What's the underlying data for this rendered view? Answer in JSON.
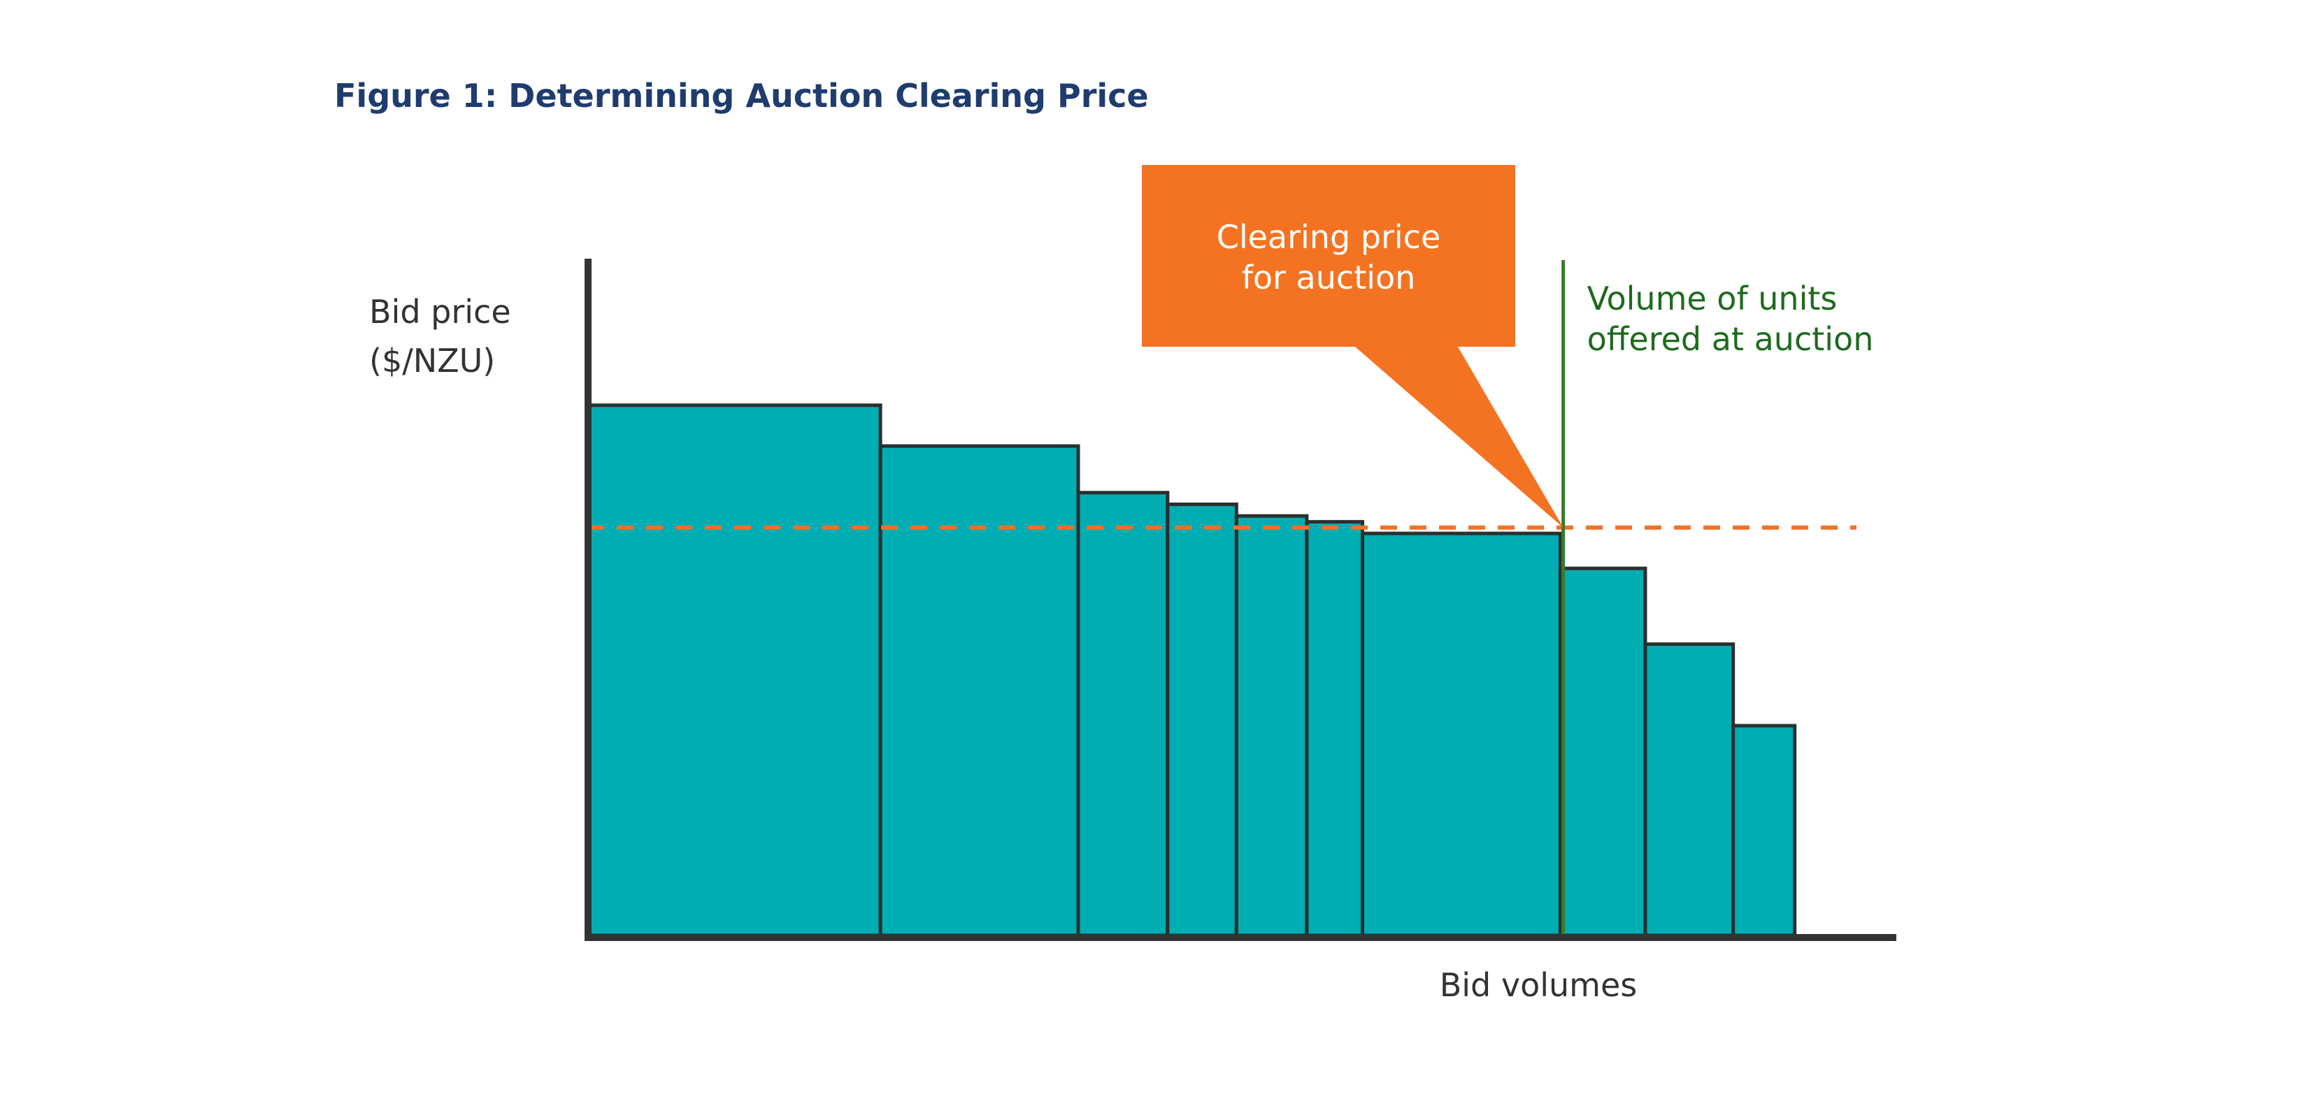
{
  "chart_data": {
    "type": "bar",
    "title": "Figure 1: Determining Auction Clearing Price",
    "ylabel_lines": [
      "Bid price",
      "($/NZU)"
    ],
    "xlabel": "Bid volumes",
    "bars": [
      {
        "volume": 200,
        "price": 91
      },
      {
        "volume": 135,
        "price": 84
      },
      {
        "volume": 61,
        "price": 76
      },
      {
        "volume": 47,
        "price": 74
      },
      {
        "volume": 48,
        "price": 72
      },
      {
        "volume": 38,
        "price": 71
      },
      {
        "volume": 135,
        "price": 69
      },
      {
        "volume": 58,
        "price": 63
      },
      {
        "volume": 60,
        "price": 50
      },
      {
        "volume": 42,
        "price": 36
      }
    ],
    "xlim": [
      0,
      890
    ],
    "ylim": [
      0,
      120
    ],
    "clearing_price": 70,
    "supply_volume": 666,
    "callout_lines": [
      "Clearing price",
      "for auction"
    ],
    "supply_label_lines": [
      "Volume of units",
      "offered at auction"
    ],
    "colors": {
      "title": "#1f3c6e",
      "bar_fill": "#00adb2",
      "bar_stroke": "#2a2f2f",
      "axis": "#333333",
      "clearing_line": "#f07127",
      "callout_fill": "#f47322",
      "callout_text": "#ffffff",
      "supply_line": "#3b7a2f",
      "supply_text": "#1e6a1e",
      "label_text": "#333333"
    }
  }
}
